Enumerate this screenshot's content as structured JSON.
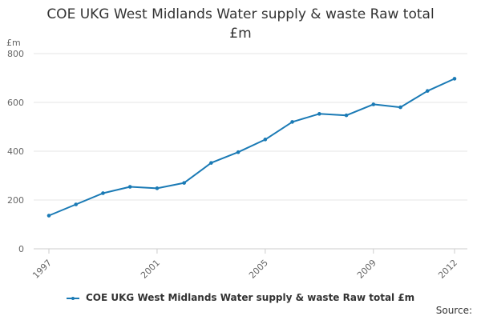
{
  "title_line1": "COE UKG West Midlands Water supply & waste Raw total",
  "title_line2": "£m",
  "source_label": "Source:",
  "chart_data": {
    "type": "line",
    "title": "COE UKG West Midlands Water supply & waste Raw total £m",
    "ylabel": "£m",
    "xlabel": "",
    "ylim": [
      0,
      800
    ],
    "yticks": [
      0,
      200,
      400,
      600,
      800
    ],
    "xticks": [
      1997,
      2001,
      2005,
      2009,
      2012
    ],
    "grid": true,
    "legend": "bottom",
    "series": [
      {
        "name": "COE UKG West Midlands Water supply & waste Raw total £m",
        "color": "#1a7ab5",
        "x": [
          1997,
          1998,
          1999,
          2000,
          2001,
          2002,
          2003,
          2004,
          2005,
          2006,
          2007,
          2008,
          2009,
          2010,
          2011,
          2012
        ],
        "y": [
          136,
          182,
          228,
          254,
          248,
          270,
          352,
          396,
          448,
          520,
          553,
          547,
          592,
          580,
          647,
          697
        ]
      }
    ]
  }
}
